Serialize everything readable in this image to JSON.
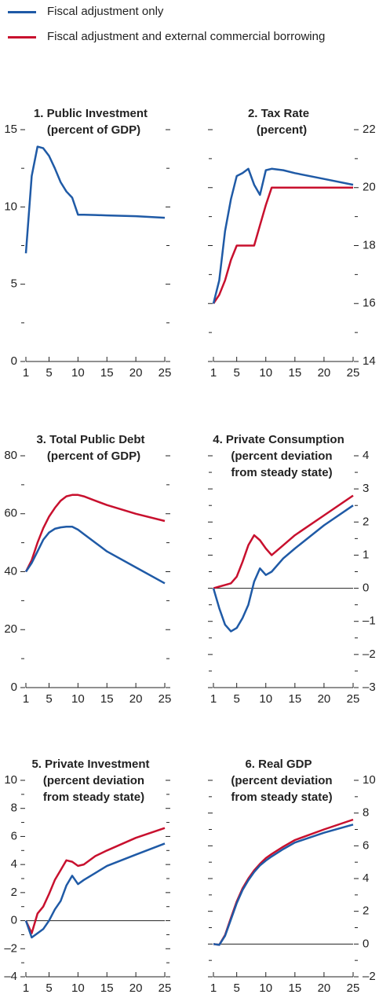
{
  "chart_data": [
    {
      "type": "line",
      "title": "1. Public Investment",
      "subtitle": [
        "(percent of GDP)"
      ],
      "x": [
        1,
        2,
        3,
        4,
        5,
        6,
        7,
        8,
        9,
        10,
        11,
        13,
        15,
        20,
        25
      ],
      "series": [
        {
          "color": "#1f5aa6",
          "values": [
            7,
            12,
            13.9,
            13.8,
            13.3,
            12.5,
            11.6,
            11,
            10.6,
            9.5,
            9.5,
            9.48,
            9.45,
            9.4,
            9.3
          ]
        }
      ],
      "xlim": [
        1,
        25
      ],
      "xticks": [
        1,
        5,
        10,
        15,
        20,
        25
      ],
      "ylim": [
        0,
        15
      ],
      "yticks": [
        0,
        5,
        10,
        15
      ],
      "yminorticks": [
        2.5,
        7.5,
        12.5
      ],
      "ylabel_side": "left",
      "zero_line": false
    },
    {
      "type": "line",
      "title": "2. Tax Rate",
      "subtitle": [
        "(percent)"
      ],
      "x": [
        1,
        2,
        3,
        4,
        5,
        6,
        7,
        8,
        9,
        10,
        11,
        13,
        15,
        20,
        25
      ],
      "series": [
        {
          "name": "Fiscal adjustment only",
          "color": "#1f5aa6",
          "values": [
            16,
            16.8,
            18.5,
            19.6,
            20.4,
            20.5,
            20.65,
            20.1,
            19.75,
            20.6,
            20.65,
            20.6,
            20.5,
            20.3,
            20.1
          ]
        },
        {
          "name": "Fiscal adjustment and external commercial borrowing",
          "color": "#c8102e",
          "values": [
            16,
            16.3,
            16.8,
            17.5,
            18,
            18,
            18,
            18,
            18.7,
            19.4,
            20,
            20,
            20,
            20,
            20
          ]
        }
      ],
      "xlim": [
        1,
        25
      ],
      "xticks": [
        1,
        5,
        10,
        15,
        20,
        25
      ],
      "ylim": [
        14,
        22
      ],
      "yticks": [
        14,
        16,
        18,
        20,
        22
      ],
      "yminorticks": [
        15,
        17,
        19,
        21
      ],
      "ylabel_side": "right",
      "zero_line": false
    },
    {
      "type": "line",
      "title": "3. Total Public Debt",
      "subtitle": [
        "(percent of GDP)"
      ],
      "x": [
        1,
        2,
        3,
        4,
        5,
        6,
        7,
        8,
        9,
        10,
        11,
        13,
        15,
        20,
        25
      ],
      "series": [
        {
          "color": "#1f5aa6",
          "values": [
            40,
            43,
            47,
            51,
            53.5,
            54.8,
            55.3,
            55.5,
            55.5,
            54.5,
            53,
            50,
            47,
            41.5,
            36
          ]
        },
        {
          "color": "#c8102e",
          "values": [
            40,
            44,
            50,
            55,
            59,
            62,
            64.5,
            66,
            66.5,
            66.5,
            66,
            64.5,
            63,
            60,
            57.5
          ]
        }
      ],
      "xlim": [
        1,
        25
      ],
      "xticks": [
        1,
        5,
        10,
        15,
        20,
        25
      ],
      "ylim": [
        0,
        80
      ],
      "yticks": [
        0,
        20,
        40,
        60,
        80
      ],
      "yminorticks": [
        10,
        30,
        50,
        70
      ],
      "ylabel_side": "left",
      "zero_line": false
    },
    {
      "type": "line",
      "title": "4. Private Consumption",
      "subtitle": [
        "(percent deviation",
        "from steady state)"
      ],
      "x": [
        1,
        2,
        3,
        4,
        5,
        6,
        7,
        8,
        9,
        10,
        11,
        13,
        15,
        20,
        25
      ],
      "series": [
        {
          "color": "#1f5aa6",
          "values": [
            0,
            -0.6,
            -1.1,
            -1.3,
            -1.2,
            -0.9,
            -0.5,
            0.2,
            0.6,
            0.4,
            0.5,
            0.9,
            1.2,
            1.9,
            2.5
          ]
        },
        {
          "color": "#c8102e",
          "values": [
            0,
            0.05,
            0.1,
            0.15,
            0.35,
            0.8,
            1.3,
            1.6,
            1.45,
            1.2,
            1,
            1.3,
            1.6,
            2.2,
            2.8
          ]
        }
      ],
      "xlim": [
        1,
        25
      ],
      "xticks": [
        1,
        5,
        10,
        15,
        20,
        25
      ],
      "ylim": [
        -3,
        4
      ],
      "yticks": [
        {
          "value": -3,
          "label": "–3"
        },
        {
          "value": -2,
          "label": "–2"
        },
        {
          "value": -1,
          "label": "–1"
        },
        0,
        1,
        2,
        3,
        4
      ],
      "yminorticks": [
        -2.5,
        -1.5,
        -0.5,
        0.5,
        1.5,
        2.5,
        3.5
      ],
      "ylabel_side": "right",
      "zero_line": true
    },
    {
      "type": "line",
      "title": "5. Private Investment",
      "subtitle": [
        "(percent deviation",
        "from steady state)"
      ],
      "x": [
        1,
        2,
        3,
        4,
        5,
        6,
        7,
        8,
        9,
        10,
        11,
        13,
        15,
        20,
        25
      ],
      "series": [
        {
          "color": "#1f5aa6",
          "values": [
            0,
            -1.2,
            -0.9,
            -0.6,
            0,
            0.8,
            1.4,
            2.5,
            3.2,
            2.6,
            2.9,
            3.4,
            3.9,
            4.7,
            5.5
          ]
        },
        {
          "color": "#c8102e",
          "values": [
            0,
            -0.9,
            0.5,
            1,
            1.9,
            2.9,
            3.6,
            4.3,
            4.2,
            3.9,
            4,
            4.6,
            5,
            5.9,
            6.6
          ]
        }
      ],
      "xlim": [
        1,
        25
      ],
      "xticks": [
        1,
        5,
        10,
        15,
        20,
        25
      ],
      "ylim": [
        -4,
        10
      ],
      "yticks": [
        {
          "value": -4,
          "label": "–4"
        },
        {
          "value": -2,
          "label": "–2"
        },
        0,
        2,
        4,
        6,
        8,
        10
      ],
      "yminorticks": [
        -3,
        -1,
        1,
        3,
        5,
        7,
        9
      ],
      "ylabel_side": "left",
      "zero_line": true
    },
    {
      "type": "line",
      "title": "6. Real GDP",
      "subtitle": [
        "(percent deviation",
        "from steady state)"
      ],
      "x": [
        1,
        2,
        3,
        4,
        5,
        6,
        7,
        8,
        9,
        10,
        11,
        13,
        15,
        20,
        25
      ],
      "series": [
        {
          "color": "#1f5aa6",
          "values": [
            0,
            -0.05,
            0.5,
            1.5,
            2.5,
            3.3,
            3.9,
            4.4,
            4.8,
            5.1,
            5.35,
            5.8,
            6.2,
            6.8,
            7.3
          ]
        },
        {
          "color": "#c8102e",
          "values": [
            0,
            -0.05,
            0.55,
            1.6,
            2.6,
            3.4,
            4,
            4.5,
            4.9,
            5.25,
            5.5,
            5.95,
            6.35,
            7,
            7.6
          ]
        }
      ],
      "xlim": [
        1,
        25
      ],
      "xticks": [
        1,
        5,
        10,
        15,
        20,
        25
      ],
      "ylim": [
        -2,
        10
      ],
      "yticks": [
        {
          "value": -2,
          "label": "–2"
        },
        0,
        2,
        4,
        6,
        8,
        10
      ],
      "yminorticks": [
        -1,
        1,
        3,
        5,
        7,
        9
      ],
      "ylabel_side": "right",
      "zero_line": true
    }
  ]
}
